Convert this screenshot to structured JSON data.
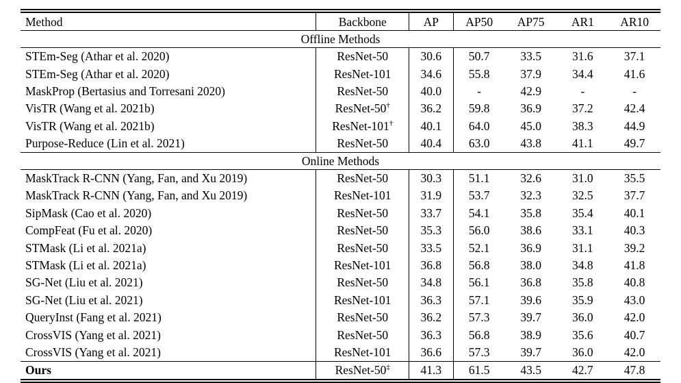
{
  "table": {
    "columns": [
      "Method",
      "Backbone",
      "AP",
      "AP50",
      "AP75",
      "AR1",
      "AR10"
    ],
    "sections": [
      {
        "label": "Offline Methods",
        "rows": [
          {
            "method": "STEm-Seg (Athar et al. 2020)",
            "backbone": "ResNet-50",
            "backbone_sup": "",
            "ap": "30.6",
            "ap50": "50.7",
            "ap75": "33.5",
            "ar1": "31.6",
            "ar10": "37.1"
          },
          {
            "method": "STEm-Seg (Athar et al. 2020)",
            "backbone": "ResNet-101",
            "backbone_sup": "",
            "ap": "34.6",
            "ap50": "55.8",
            "ap75": "37.9",
            "ar1": "34.4",
            "ar10": "41.6"
          },
          {
            "method": "MaskProp (Bertasius and Torresani 2020)",
            "backbone": "ResNet-50",
            "backbone_sup": "",
            "ap": "40.0",
            "ap50": "-",
            "ap75": "42.9",
            "ar1": "-",
            "ar10": "-"
          },
          {
            "method": "VisTR (Wang et al. 2021b)",
            "backbone": "ResNet-50",
            "backbone_sup": "†",
            "ap": "36.2",
            "ap50": "59.8",
            "ap75": "36.9",
            "ar1": "37.2",
            "ar10": "42.4"
          },
          {
            "method": "VisTR (Wang et al. 2021b)",
            "backbone": "ResNet-101",
            "backbone_sup": "†",
            "ap": "40.1",
            "ap50": "64.0",
            "ap75": "45.0",
            "ar1": "38.3",
            "ar10": "44.9"
          },
          {
            "method": "Purpose-Reduce (Lin et al. 2021)",
            "backbone": "ResNet-50",
            "backbone_sup": "",
            "ap": "40.4",
            "ap50": "63.0",
            "ap75": "43.8",
            "ar1": "41.1",
            "ar10": "49.7"
          }
        ]
      },
      {
        "label": "Online Methods",
        "rows": [
          {
            "method": "MaskTrack R-CNN (Yang, Fan, and Xu 2019)",
            "backbone": "ResNet-50",
            "backbone_sup": "",
            "ap": "30.3",
            "ap50": "51.1",
            "ap75": "32.6",
            "ar1": "31.0",
            "ar10": "35.5"
          },
          {
            "method": "MaskTrack R-CNN (Yang, Fan, and Xu 2019)",
            "backbone": "ResNet-101",
            "backbone_sup": "",
            "ap": "31.9",
            "ap50": "53.7",
            "ap75": "32.3",
            "ar1": "32.5",
            "ar10": "37.7"
          },
          {
            "method": "SipMask (Cao et al. 2020)",
            "backbone": "ResNet-50",
            "backbone_sup": "",
            "ap": "33.7",
            "ap50": "54.1",
            "ap75": "35.8",
            "ar1": "35.4",
            "ar10": "40.1"
          },
          {
            "method": "CompFeat (Fu et al. 2020)",
            "backbone": "ResNet-50",
            "backbone_sup": "",
            "ap": "35.3",
            "ap50": "56.0",
            "ap75": "38.6",
            "ar1": "33.1",
            "ar10": "40.3"
          },
          {
            "method": "STMask (Li et al. 2021a)",
            "backbone": "ResNet-50",
            "backbone_sup": "",
            "ap": "33.5",
            "ap50": "52.1",
            "ap75": "36.9",
            "ar1": "31.1",
            "ar10": "39.2"
          },
          {
            "method": "STMask (Li et al. 2021a)",
            "backbone": "ResNet-101",
            "backbone_sup": "",
            "ap": "36.8",
            "ap50": "56.8",
            "ap75": "38.0",
            "ar1": "34.8",
            "ar10": "41.8"
          },
          {
            "method": "SG-Net (Liu et al. 2021)",
            "backbone": "ResNet-50",
            "backbone_sup": "",
            "ap": "34.8",
            "ap50": "56.1",
            "ap75": "36.8",
            "ar1": "35.8",
            "ar10": "40.8"
          },
          {
            "method": "SG-Net (Liu et al. 2021)",
            "backbone": "ResNet-101",
            "backbone_sup": "",
            "ap": "36.3",
            "ap50": "57.1",
            "ap75": "39.6",
            "ar1": "35.9",
            "ar10": "43.0"
          },
          {
            "method": "QueryInst (Fang et al. 2021)",
            "backbone": "ResNet-50",
            "backbone_sup": "",
            "ap": "36.2",
            "ap50": "57.3",
            "ap75": "39.7",
            "ar1": "36.0",
            "ar10": "42.0"
          },
          {
            "method": "CrossVIS (Yang et al. 2021)",
            "backbone": "ResNet-50",
            "backbone_sup": "",
            "ap": "36.3",
            "ap50": "56.8",
            "ap75": "38.9",
            "ar1": "35.6",
            "ar10": "40.7"
          },
          {
            "method": "CrossVIS (Yang et al. 2021)",
            "backbone": "ResNet-101",
            "backbone_sup": "",
            "ap": "36.6",
            "ap50": "57.3",
            "ap75": "39.7",
            "ar1": "36.0",
            "ar10": "42.0"
          }
        ]
      }
    ],
    "final_row": {
      "method": "Ours",
      "backbone": "ResNet-50",
      "backbone_sup": "‡",
      "ap": "41.3",
      "ap50": "61.5",
      "ap75": "43.5",
      "ar1": "42.7",
      "ar10": "47.8"
    }
  }
}
